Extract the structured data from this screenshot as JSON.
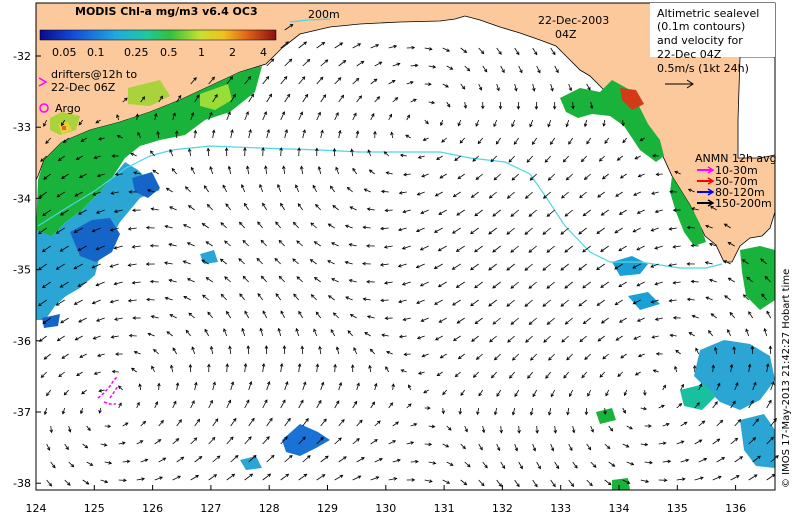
{
  "map": {
    "title": "MODIS Chl-a mg/m3 v6.4 OC3",
    "date": "22-Dec-2003",
    "time": "04Z",
    "isobath_label": "200m",
    "colorbar_ticks": [
      "0.05",
      "0.1",
      "0.25",
      "0.5",
      "1",
      "2",
      "4"
    ],
    "drifter_text": [
      "drifters@12h to",
      "22-Dec 06Z"
    ],
    "argo_label": "Argo",
    "altimetry_text": [
      "Altimetric sealevel",
      "(0.1m contours)",
      "and velocity for",
      "22-Dec 04Z",
      "0.5m/s (1kt 24h)"
    ],
    "anmn_title": "ANMN 12h avg",
    "anmn_legend": [
      {
        "label": "10-30m",
        "color": "#ff00ff"
      },
      {
        "label": "50-70m",
        "color": "#ff0000"
      },
      {
        "label": "80-120m",
        "color": "#0000ff"
      },
      {
        "label": "150-200m",
        "color": "#000000"
      }
    ],
    "credit": "© IMOS 17-May-2013 21:42:27 Hobart time",
    "x_ticks": [
      "124",
      "125",
      "126",
      "127",
      "128",
      "129",
      "130",
      "131",
      "132",
      "133",
      "134",
      "135",
      "136"
    ],
    "y_ticks": [
      "-32",
      "-33",
      "-34",
      "-35",
      "-36",
      "-37",
      "-38"
    ],
    "colors": {
      "land": "#fbc99b",
      "isobath": "#4fd6e4",
      "arrow": "#000000",
      "drifter": "#ff00ff"
    }
  }
}
